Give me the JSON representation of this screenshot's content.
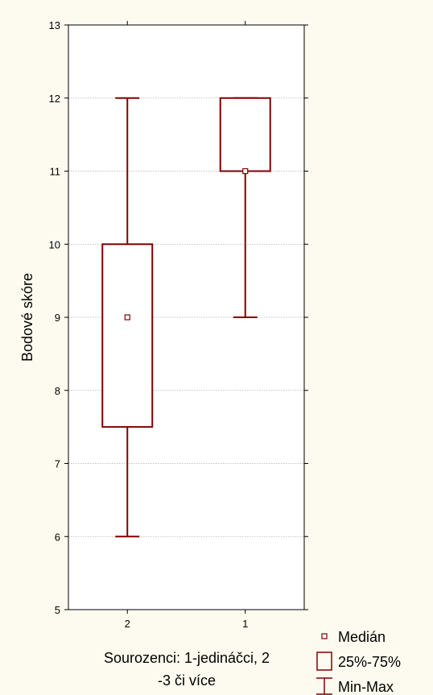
{
  "chart_data": {
    "type": "boxplot",
    "title": "",
    "xlabel_lines": [
      "Sourozenci: 1-jedináčci, 2",
      "-3 či více"
    ],
    "ylabel": "Bodové skóre",
    "ylim": [
      5,
      13
    ],
    "yticks": [
      5,
      6,
      7,
      8,
      9,
      10,
      11,
      12,
      13
    ],
    "grid": true,
    "categories": [
      "2",
      "1"
    ],
    "boxes": [
      {
        "category": "2",
        "min": 6,
        "q1": 7.5,
        "median": 9,
        "q3": 10,
        "max": 12
      },
      {
        "category": "1",
        "min": 9,
        "q1": 11,
        "median": 11,
        "q3": 12,
        "max": 12
      }
    ],
    "legend": {
      "position": "bottom-right",
      "items": [
        {
          "label": "Medián",
          "symbol": "median-square"
        },
        {
          "label": "25%-75%",
          "symbol": "box"
        },
        {
          "label": "Min-Max",
          "symbol": "whisker"
        }
      ]
    },
    "colors": {
      "series": "#800000",
      "background": "#fdfbef",
      "plot_background": "#ffffff",
      "grid": "#b0b0b0"
    }
  }
}
